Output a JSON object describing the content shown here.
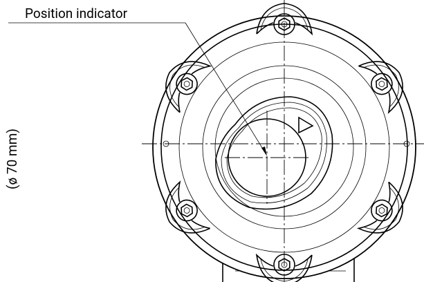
{
  "labels": {
    "position_indicator": "Position indicator",
    "diameter": "(ø 70 mm)"
  }
}
